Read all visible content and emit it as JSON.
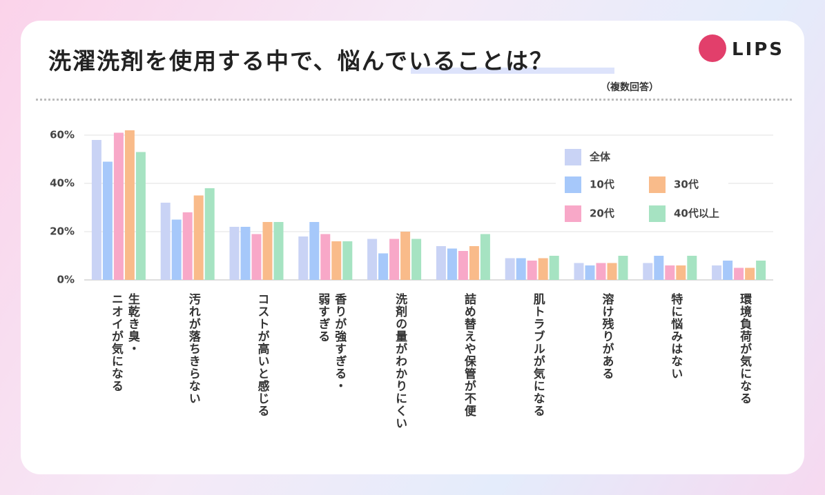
{
  "chart_data": {
    "type": "bar",
    "title": "洗濯洗剤を使用する中で、悩んでいることは？",
    "subtitle": "（複数回答）",
    "logo": "LIPS",
    "categories": [
      "生乾き臭・\nニオイが気になる",
      "汚れが落ちきらない",
      "コストが高いと感じる",
      "香りが強すぎる・\n弱すぎる",
      "洗剤の量がわかりにくい",
      "詰め替えや保管が不便",
      "肌トラブルが気になる",
      "溶け残りがある",
      "特に悩みはない",
      "環境負荷が気になる"
    ],
    "series": [
      {
        "name": "全体",
        "color": "#c9d3f5",
        "values": [
          58,
          32,
          22,
          18,
          17,
          14,
          9,
          7,
          7,
          6
        ]
      },
      {
        "name": "10代",
        "color": "#a6c8fa",
        "values": [
          49,
          25,
          22,
          24,
          11,
          13,
          9,
          6,
          10,
          8
        ]
      },
      {
        "name": "20代",
        "color": "#f8a8c8",
        "values": [
          61,
          28,
          19,
          19,
          17,
          12,
          8,
          7,
          6,
          5
        ]
      },
      {
        "name": "30代",
        "color": "#f9bb8a",
        "values": [
          62,
          35,
          24,
          16,
          20,
          14,
          9,
          7,
          6,
          5
        ]
      },
      {
        "name": "40代以上",
        "color": "#a6e3c2",
        "values": [
          53,
          38,
          24,
          16,
          17,
          19,
          10,
          10,
          10,
          8
        ]
      }
    ],
    "ylim": [
      0,
      65
    ],
    "yticks": [
      {
        "value": 0,
        "label": "0%"
      },
      {
        "value": 20,
        "label": "20%"
      },
      {
        "value": 40,
        "label": "40%"
      },
      {
        "value": 60,
        "label": "60%"
      }
    ],
    "grid": true
  }
}
